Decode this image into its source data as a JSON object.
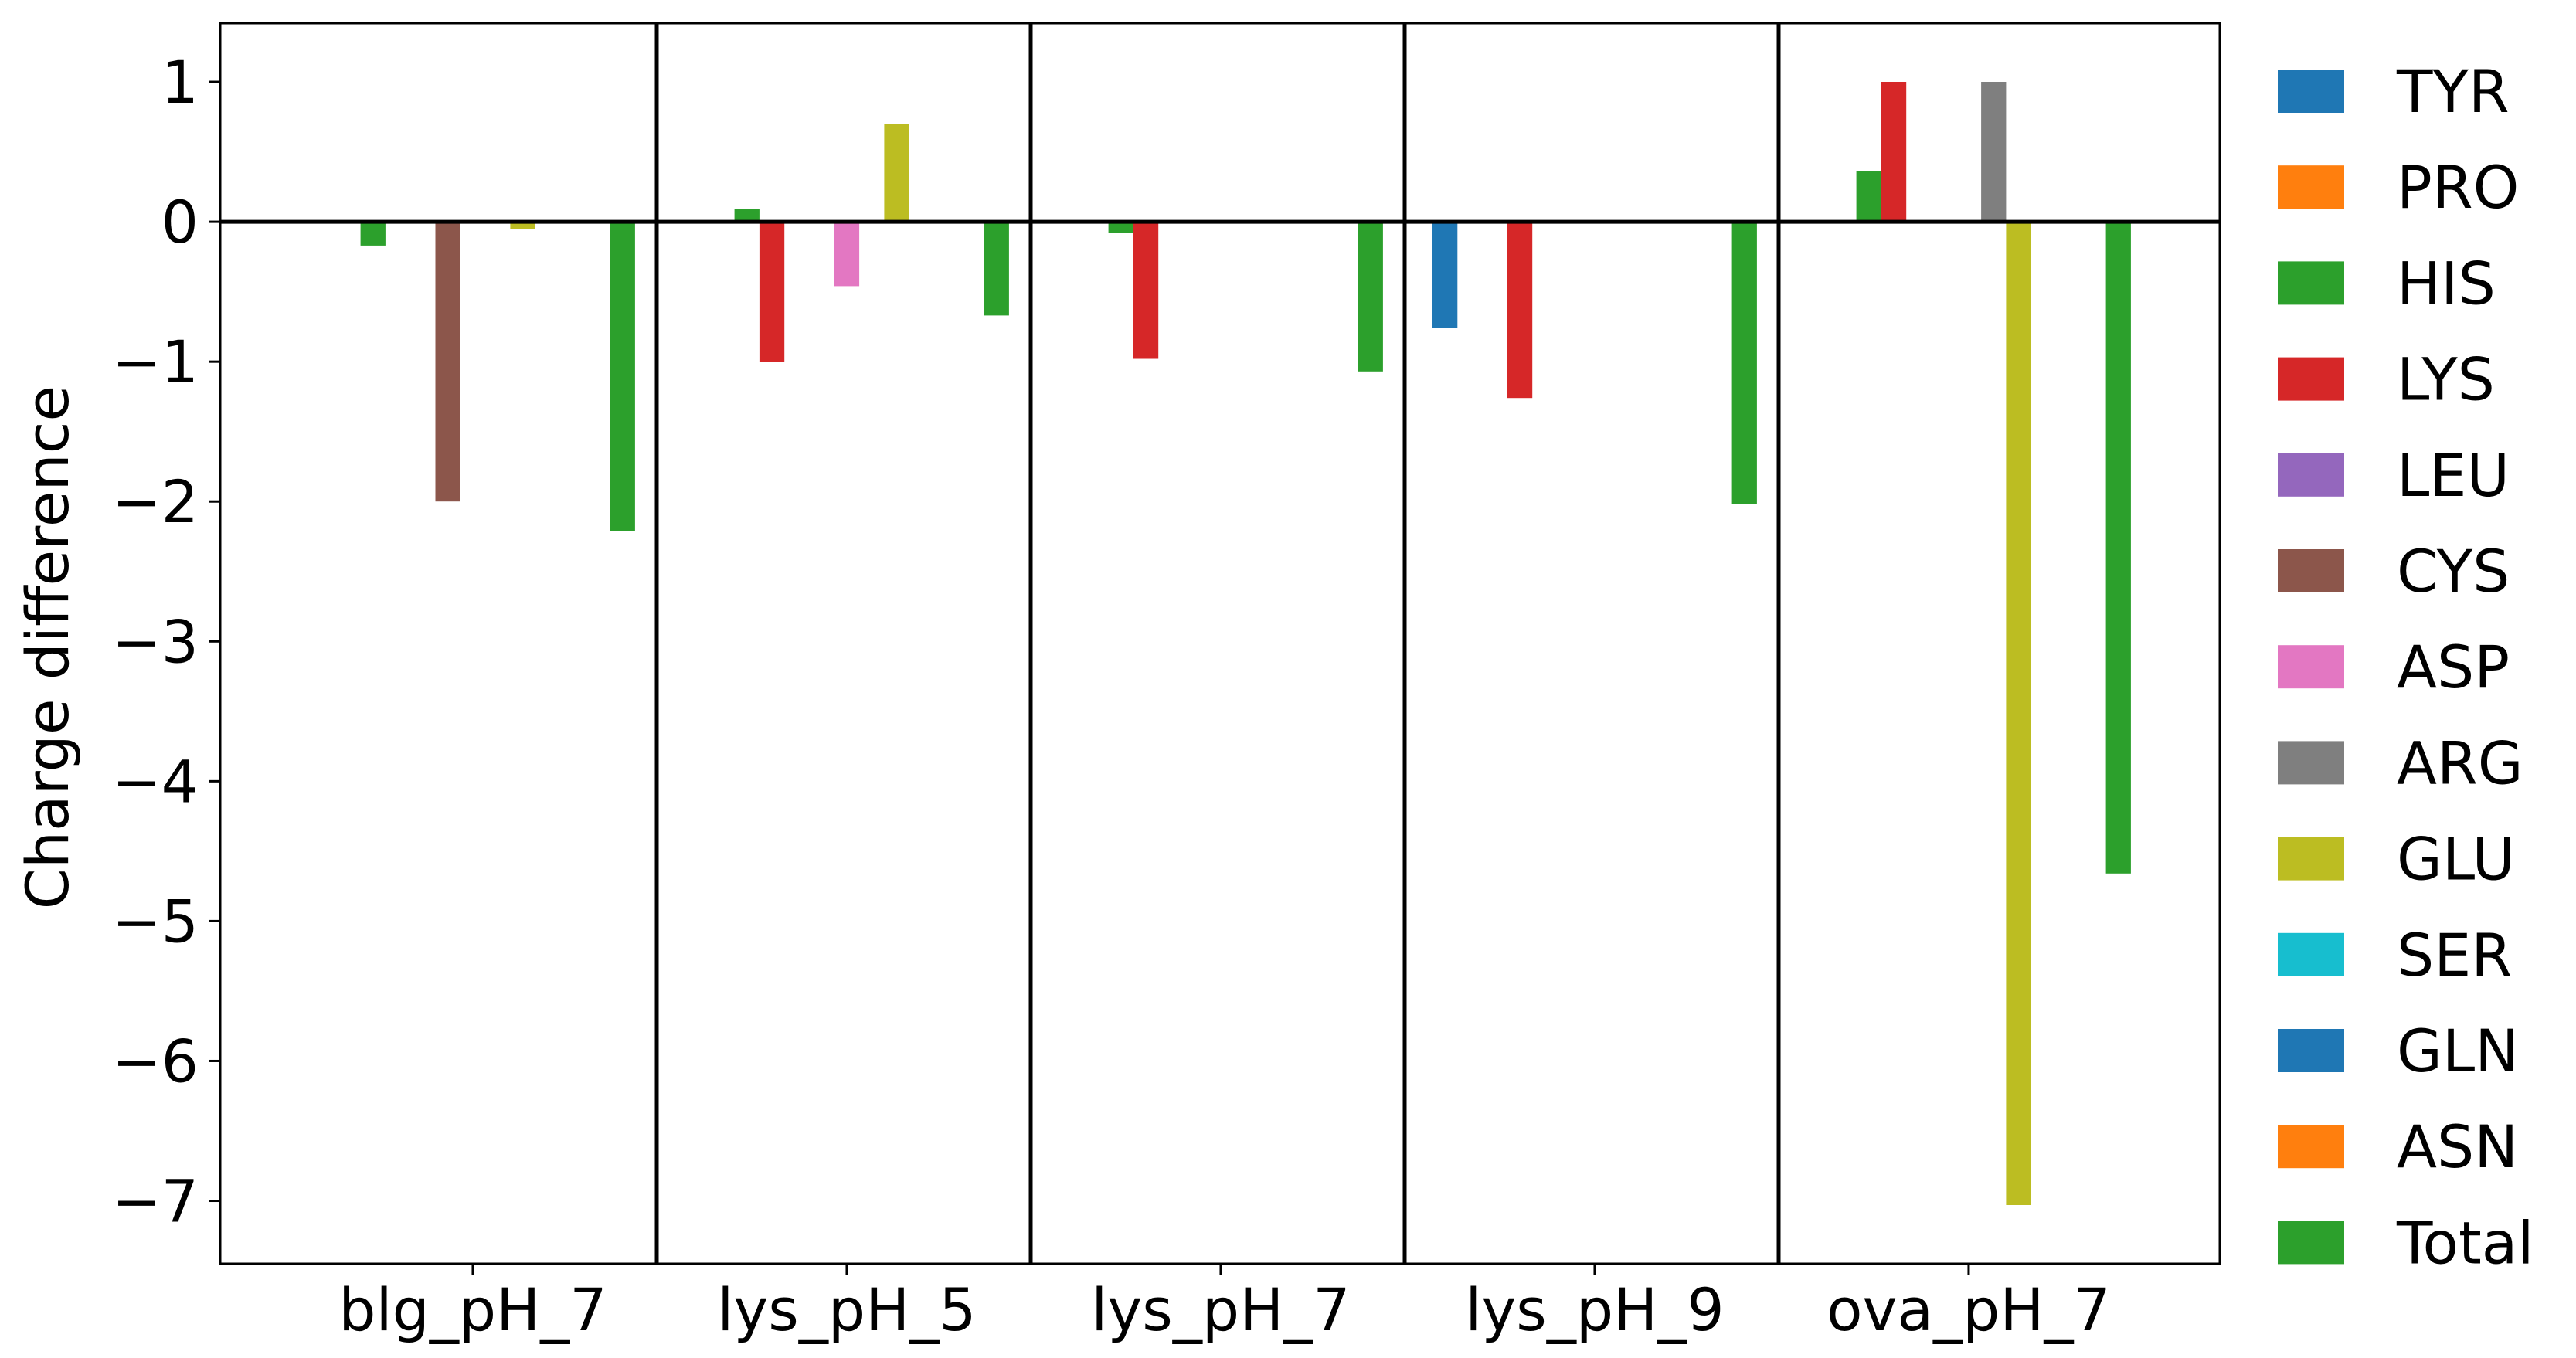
{
  "chart_data": {
    "type": "bar",
    "title": "",
    "xlabel": "",
    "ylabel": "Charge difference",
    "ylim": [
      -7.45,
      1.42
    ],
    "yticks": [
      1,
      0,
      -1,
      -2,
      -3,
      -4,
      -5,
      -6,
      -7
    ],
    "ytick_labels": [
      "1",
      "0",
      "−1",
      "−2",
      "−3",
      "−4",
      "−5",
      "−6",
      "−7"
    ],
    "grid": false,
    "legend_position": "right",
    "categories": [
      "blg_pH_7",
      "lys_pH_5",
      "lys_pH_7",
      "lys_pH_9",
      "ova_pH_7"
    ],
    "series": [
      {
        "name": "TYR",
        "color": "#1f77b4",
        "values": [
          0,
          0,
          0,
          -0.76,
          0
        ]
      },
      {
        "name": "PRO",
        "color": "#ff7f0e",
        "values": [
          0,
          0,
          0,
          0,
          0
        ]
      },
      {
        "name": "HIS",
        "color": "#2ca02c",
        "values": [
          -0.17,
          0.09,
          -0.08,
          0,
          0.36
        ]
      },
      {
        "name": "LYS",
        "color": "#d62728",
        "values": [
          0,
          -1.0,
          -0.98,
          -1.26,
          1.0
        ]
      },
      {
        "name": "LEU",
        "color": "#9467bd",
        "values": [
          0,
          0,
          0,
          0,
          0
        ]
      },
      {
        "name": "CYS",
        "color": "#8c564b",
        "values": [
          -2.0,
          0,
          0,
          0,
          0
        ]
      },
      {
        "name": "ASP",
        "color": "#e377c2",
        "values": [
          0,
          -0.46,
          0,
          0,
          0
        ]
      },
      {
        "name": "ARG",
        "color": "#7f7f7f",
        "values": [
          0,
          0,
          0,
          0,
          1.0
        ]
      },
      {
        "name": "GLU",
        "color": "#bcbd22",
        "values": [
          -0.05,
          0.7,
          0,
          0,
          -7.03
        ]
      },
      {
        "name": "SER",
        "color": "#17becf",
        "values": [
          0,
          0,
          0,
          0,
          0
        ]
      },
      {
        "name": "GLN",
        "color": "#1f77b4",
        "values": [
          0,
          0,
          0,
          0,
          0
        ]
      },
      {
        "name": "ASN",
        "color": "#ff7f0e",
        "values": [
          0,
          0,
          0,
          0,
          0
        ]
      },
      {
        "name": "Total",
        "color": "#2ca02c",
        "values": [
          -2.21,
          -0.67,
          -1.07,
          -2.02,
          -4.66
        ]
      }
    ]
  }
}
